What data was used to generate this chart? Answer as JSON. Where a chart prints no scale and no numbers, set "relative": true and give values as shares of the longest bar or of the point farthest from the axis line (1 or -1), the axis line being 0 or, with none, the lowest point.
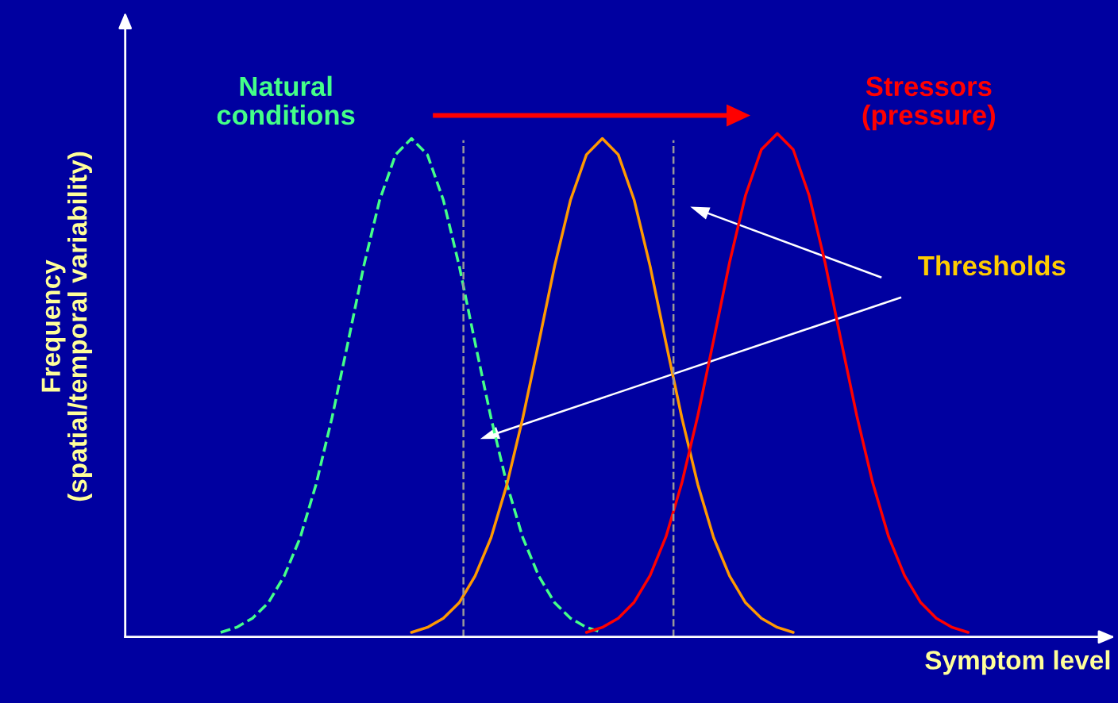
{
  "chart_data": {
    "type": "line",
    "relative": true,
    "xlabel": "Symptom level",
    "ylabel": "Frequency\n(spatial/temporal variability)",
    "categories": [
      null,
      null,
      null,
      null,
      null,
      null,
      null,
      null,
      null,
      null,
      null,
      null,
      null,
      null,
      null,
      null,
      null,
      null,
      null,
      null,
      null,
      null,
      null,
      null,
      null,
      null,
      null,
      null,
      null,
      null,
      null,
      null,
      null,
      null,
      null,
      null,
      null,
      null,
      null,
      null,
      null,
      null,
      null,
      null,
      null,
      null,
      null,
      null,
      null,
      null,
      null,
      null,
      null,
      null,
      null,
      null,
      null,
      null,
      null,
      null,
      null,
      null,
      null
    ],
    "series": [
      {
        "name": "Natural\nconditions",
        "color": "#44ff88",
        "line_style": "dashed",
        "values": [
          null,
          null,
          null,
          null,
          null,
          null,
          0.009,
          0.019,
          0.037,
          0.068,
          0.121,
          0.197,
          0.303,
          0.435,
          0.584,
          0.737,
          0.868,
          0.958,
          0.99,
          0.958,
          0.868,
          0.737,
          0.584,
          0.435,
          0.303,
          0.197,
          0.121,
          0.068,
          0.037,
          0.019,
          0.009,
          null,
          null,
          null,
          null,
          null,
          null,
          null,
          null,
          null,
          null,
          null,
          null,
          null,
          null,
          null,
          null,
          null,
          null,
          null,
          null,
          null,
          null,
          null,
          null,
          null,
          null,
          null,
          null,
          null,
          null,
          null,
          null
        ]
      },
      {
        "color": "#ff9900",
        "line_style": "solid",
        "values": [
          null,
          null,
          null,
          null,
          null,
          null,
          null,
          null,
          null,
          null,
          null,
          null,
          null,
          null,
          null,
          null,
          null,
          null,
          0.009,
          0.019,
          0.037,
          0.068,
          0.121,
          0.197,
          0.303,
          0.435,
          0.584,
          0.737,
          0.868,
          0.958,
          0.99,
          0.958,
          0.868,
          0.737,
          0.584,
          0.435,
          0.303,
          0.197,
          0.121,
          0.068,
          0.037,
          0.019,
          0.009,
          null,
          null,
          null,
          null,
          null,
          null,
          null,
          null,
          null,
          null,
          null,
          null,
          null,
          null,
          null,
          null,
          null,
          null,
          null,
          null
        ]
      },
      {
        "name": "Stressors\n(pressure)",
        "color": "#ff0000",
        "line_style": "solid",
        "values": [
          null,
          null,
          null,
          null,
          null,
          null,
          null,
          null,
          null,
          null,
          null,
          null,
          null,
          null,
          null,
          null,
          null,
          null,
          null,
          null,
          null,
          null,
          null,
          null,
          null,
          null,
          null,
          null,
          null,
          0.009,
          0.019,
          0.037,
          0.069,
          0.122,
          0.199,
          0.306,
          0.439,
          0.59,
          0.744,
          0.877,
          0.968,
          1,
          0.968,
          0.877,
          0.744,
          0.59,
          0.439,
          0.306,
          0.199,
          0.122,
          0.069,
          0.037,
          0.019,
          0.009,
          null,
          null,
          null,
          null,
          null,
          null,
          null,
          null,
          null
        ]
      }
    ],
    "annotations": [
      "Thresholds"
    ],
    "legend": false
  }
}
